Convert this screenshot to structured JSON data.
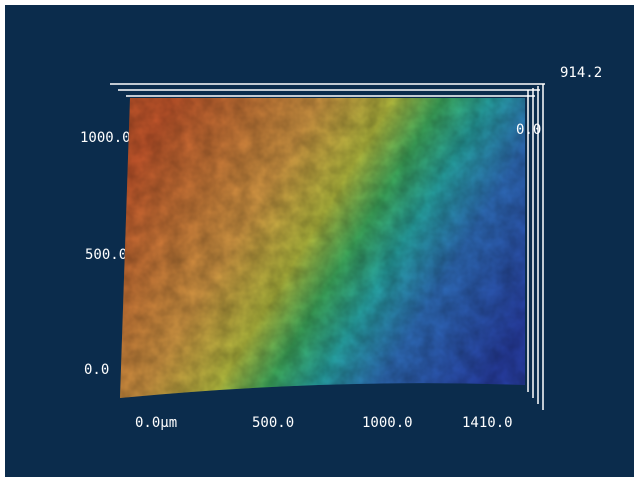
{
  "z_axis": {
    "max": "914.2",
    "min": "0.0"
  },
  "y_axis": {
    "labels": [
      "1000.0",
      "500.0",
      "0.0"
    ]
  },
  "x_axis": {
    "labels": [
      "0.0µm",
      "500.0",
      "1000.0",
      "1410.0"
    ]
  }
}
